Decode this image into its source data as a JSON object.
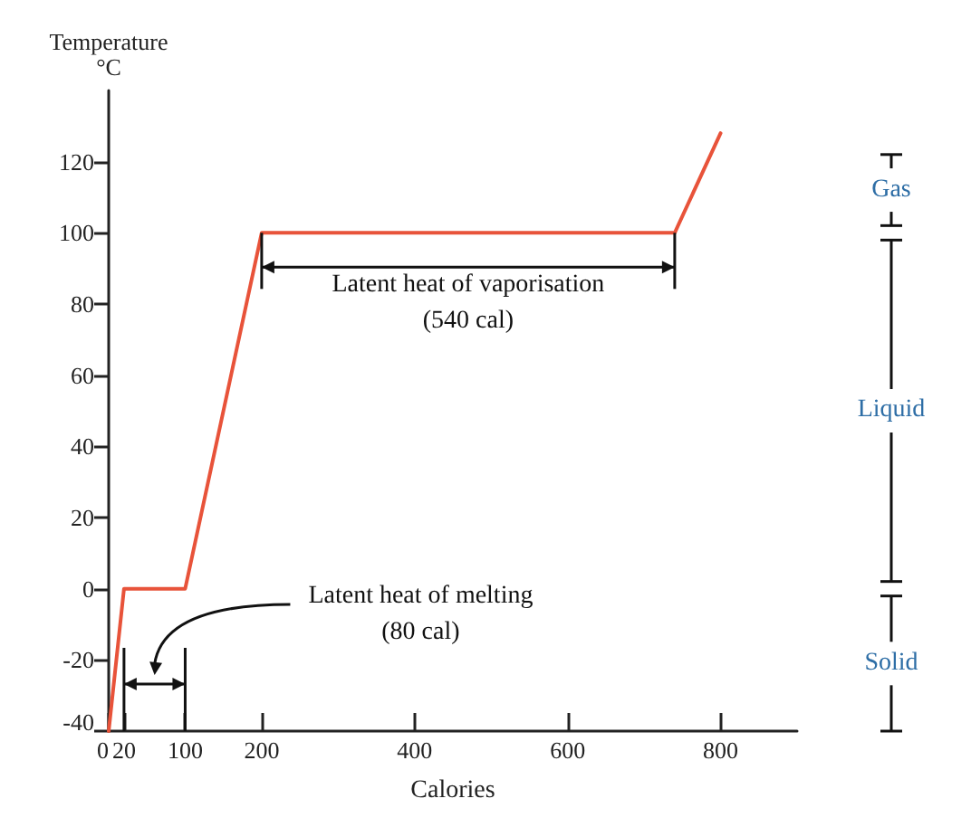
{
  "chart_data": {
    "type": "line",
    "xlabel": "Calories",
    "ylabel": "Temperature\n°C",
    "x": [
      0,
      20,
      100,
      200,
      740,
      800
    ],
    "series": [
      {
        "color": "#e8533a",
        "values": [
          -40,
          0,
          0,
          100,
          100,
          128
        ]
      }
    ],
    "xlim": [
      0,
      900
    ],
    "xticks": [
      0,
      20,
      100,
      200,
      400,
      600,
      800
    ],
    "ylim": [
      -40,
      140
    ],
    "yticks": [
      -40,
      -20,
      0,
      20,
      40,
      60,
      80,
      100,
      120
    ],
    "annotations": [
      "Latent heat of vaporisation\n(540 cal)",
      "Latent heat of melting\n(80 cal)",
      "Gas",
      "Liquid",
      "Solid"
    ],
    "grid": false,
    "marker": "none",
    "line_style": "solid"
  }
}
